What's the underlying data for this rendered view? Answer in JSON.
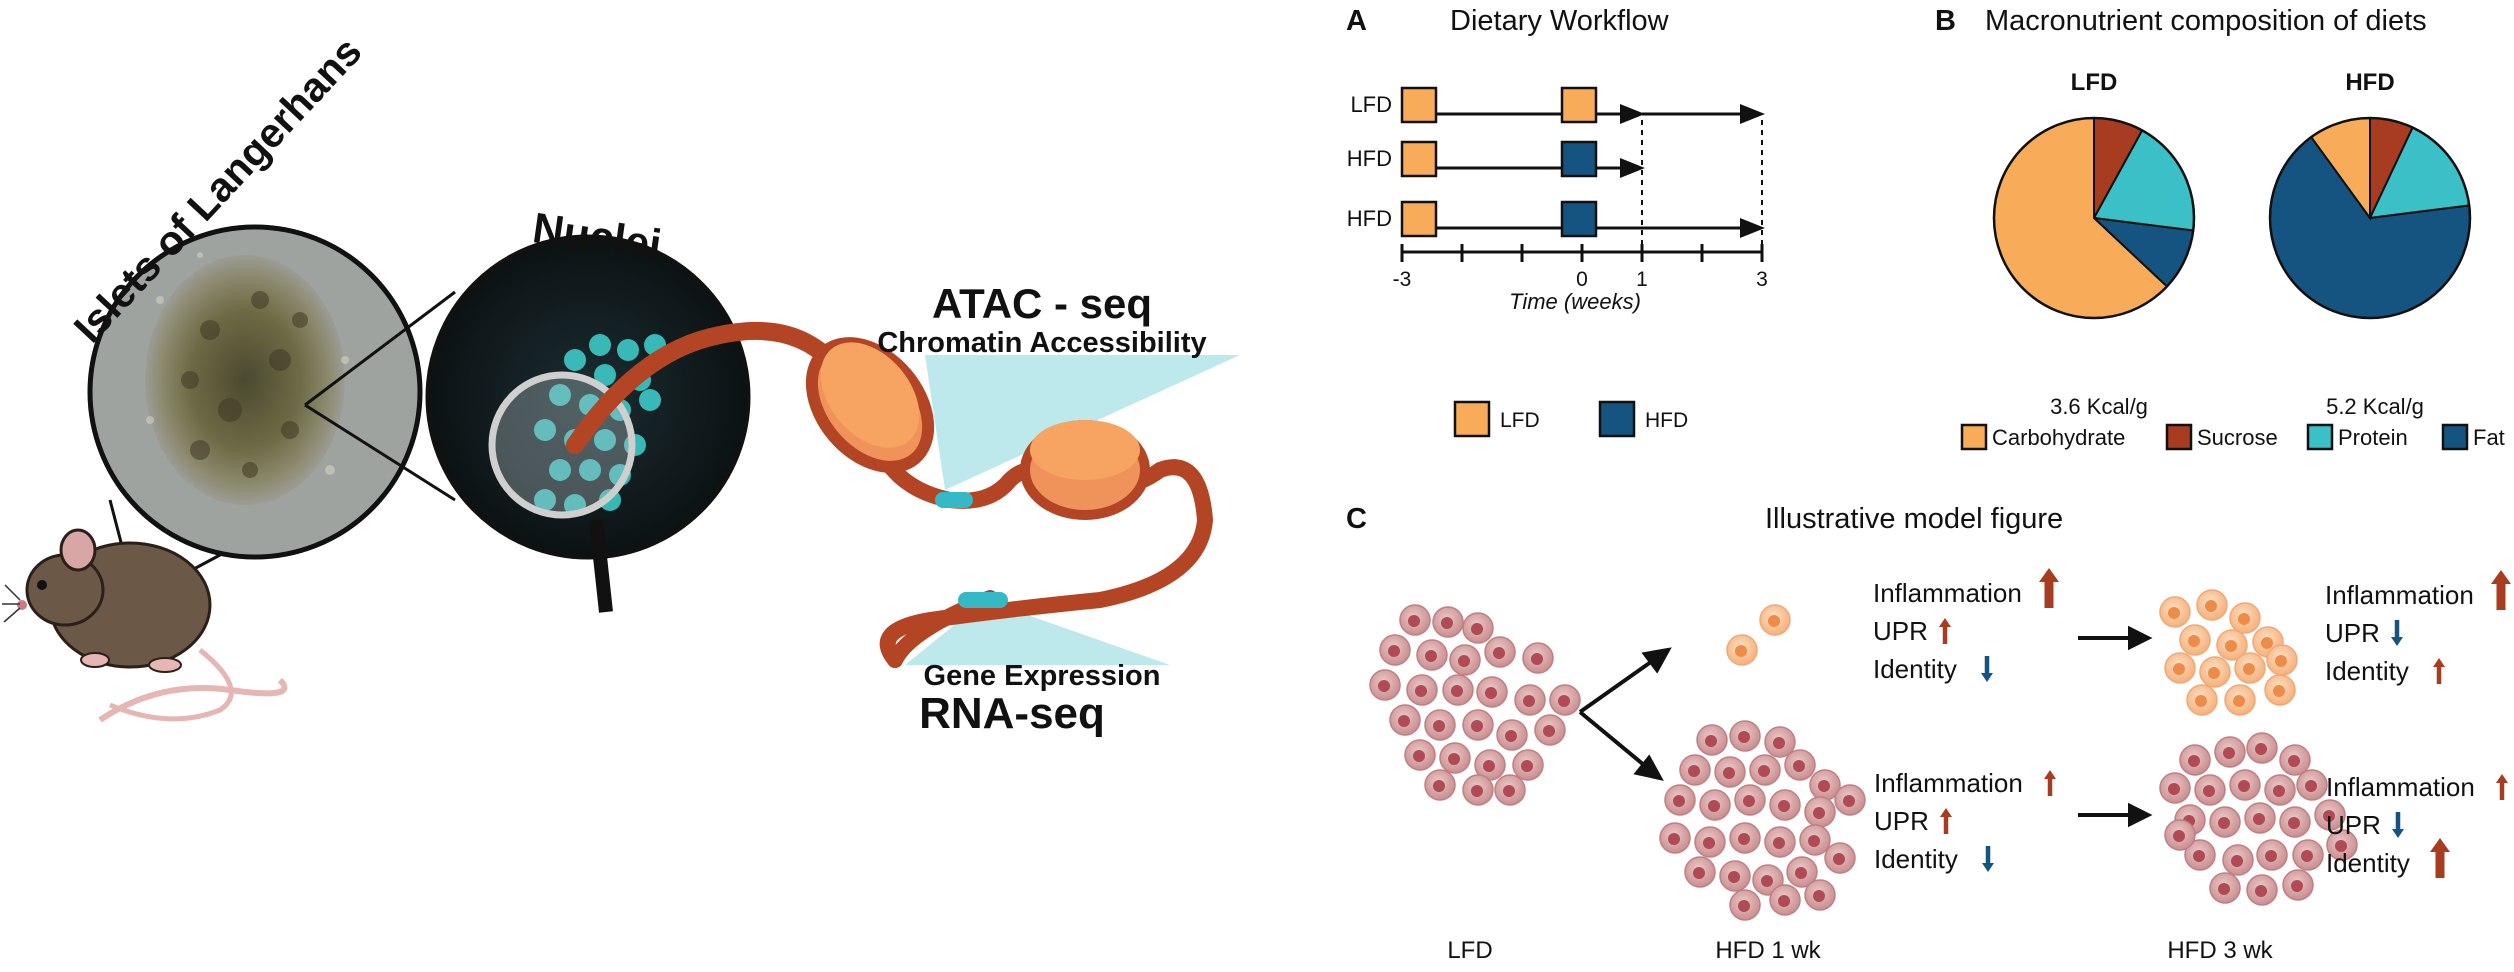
{
  "colors": {
    "lfd": "#f8ac5a",
    "hfd": "#155480",
    "carbohydrate": "#f8ac5a",
    "sucrose": "#a73c20",
    "protein": "#3ac0c6",
    "fat": "#155480",
    "chromatin": "#b34525",
    "nucleosome": "#f5a15f",
    "accessible": "#35b9c7",
    "beta_cell": "#d49fa0",
    "beta_nucleus": "#b04a55",
    "arrow_up": "#a73c20",
    "arrow_down": "#155480"
  },
  "left_illustration": {
    "islets_label": "Islets of Langerhans",
    "nuclei_label": "Nuclei",
    "atac_title": "ATAC - seq",
    "atac_sub": "Chromatin Accessibility",
    "rna_sub": "Gene Expression",
    "rna_title": "RNA-seq",
    "icons": [
      "mouse-icon",
      "microscope-islet-image",
      "nuclei-image",
      "magnifier-icon",
      "chromatin-fiber",
      "nucleosome"
    ]
  },
  "panel_a": {
    "letter": "A",
    "title": "Dietary Workflow",
    "rows": [
      {
        "label": "LFD",
        "boxes": [
          "lfd",
          "lfd"
        ],
        "end_week": 1,
        "continue_to": 3
      },
      {
        "label": "HFD",
        "boxes": [
          "lfd",
          "hfd"
        ],
        "end_week": 1
      },
      {
        "label": "HFD",
        "boxes": [
          "lfd",
          "hfd"
        ],
        "end_week": 3
      }
    ],
    "tick_labels": [
      "-3",
      "0",
      "1",
      "3"
    ],
    "axis_label": "Time (weeks)",
    "legend": [
      {
        "key": "lfd",
        "label": "LFD"
      },
      {
        "key": "hfd",
        "label": "HFD"
      }
    ]
  },
  "panel_b": {
    "letter": "B",
    "title": "Macronutrient composition of diets",
    "chart_data": [
      {
        "type": "pie",
        "title": "LFD",
        "caption": "3.6 Kcal/g",
        "series": [
          {
            "name": "Sucrose",
            "value": 8
          },
          {
            "name": "Protein",
            "value": 19
          },
          {
            "name": "Fat",
            "value": 10
          },
          {
            "name": "Carbohydrate",
            "value": 63
          }
        ]
      },
      {
        "type": "pie",
        "title": "HFD",
        "caption": "5.2 Kcal/g",
        "series": [
          {
            "name": "Sucrose",
            "value": 7
          },
          {
            "name": "Protein",
            "value": 16
          },
          {
            "name": "Fat",
            "value": 67
          },
          {
            "name": "Carbohydrate",
            "value": 10
          }
        ]
      }
    ],
    "legend": [
      {
        "key": "carbohydrate",
        "label": "Carbohydrate"
      },
      {
        "key": "sucrose",
        "label": "Sucrose"
      },
      {
        "key": "protein",
        "label": "Protein"
      },
      {
        "key": "fat",
        "label": "Fat"
      }
    ]
  },
  "panel_c": {
    "letter": "C",
    "title": "Illustrative model figure",
    "group_labels": {
      "lfd": "LFD",
      "hfd1": "HFD 1 wk",
      "hfd3": "HFD 3 wk"
    },
    "marker_sets": [
      {
        "id": "hfd1-top",
        "items": [
          {
            "label": "Inflammation",
            "direction": "up",
            "size": "large"
          },
          {
            "label": "UPR",
            "direction": "up",
            "size": "small"
          },
          {
            "label": "Identity",
            "direction": "down",
            "size": "small"
          }
        ]
      },
      {
        "id": "hfd3-top",
        "items": [
          {
            "label": "Inflammation",
            "direction": "up",
            "size": "large"
          },
          {
            "label": "UPR",
            "direction": "down",
            "size": "small"
          },
          {
            "label": "Identity",
            "direction": "up",
            "size": "small"
          }
        ]
      },
      {
        "id": "hfd1-bottom",
        "items": [
          {
            "label": "Inflammation",
            "direction": "up",
            "size": "small"
          },
          {
            "label": "UPR",
            "direction": "up",
            "size": "small"
          },
          {
            "label": "Identity",
            "direction": "down",
            "size": "small"
          }
        ]
      },
      {
        "id": "hfd3-bottom",
        "items": [
          {
            "label": "Inflammation",
            "direction": "up",
            "size": "small"
          },
          {
            "label": "UPR",
            "direction": "down",
            "size": "small"
          },
          {
            "label": "Identity",
            "direction": "up",
            "size": "large"
          }
        ]
      }
    ]
  }
}
